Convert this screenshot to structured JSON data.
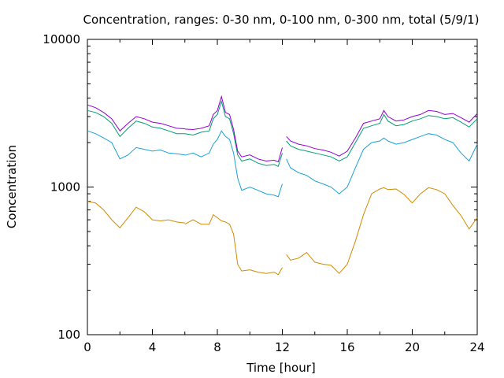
{
  "chart_data": {
    "type": "line",
    "title": "Concentration, ranges: 0-30 nm, 0-100 nm, 0-300 nm, total (5/9/1)",
    "xlabel": "Time [hour]",
    "ylabel": "Concentration",
    "xlim": [
      0,
      24
    ],
    "ylim": [
      100,
      10000
    ],
    "yscale": "log",
    "grid": false,
    "legend": "none",
    "x_ticks": [
      "0",
      "4",
      "8",
      "12",
      "16",
      "20",
      "24"
    ],
    "y_ticks": [
      "100",
      "1000",
      "10000"
    ],
    "x": [
      0,
      0.5,
      1,
      1.5,
      2,
      2.5,
      3,
      3.5,
      4,
      4.5,
      5,
      5.5,
      6,
      null,
      6,
      6.5,
      7,
      7.5,
      7.75,
      8,
      8.25,
      8.5,
      8.75,
      9,
      9.25,
      9.5,
      10,
      10.5,
      11,
      11.5,
      11.75,
      12,
      null,
      12.25,
      12.5,
      13,
      13.5,
      14,
      14.5,
      15,
      15.5,
      16,
      16.5,
      17,
      17.5,
      18,
      18.25,
      18.5,
      19,
      19.5,
      20,
      20.5,
      21,
      21.5,
      22,
      22.5,
      23,
      23.5,
      24
    ],
    "series": [
      {
        "color": "#d08a00",
        "values": [
          800,
          780,
          700,
          600,
          530,
          620,
          730,
          680,
          600,
          590,
          600,
          580,
          570,
          null,
          560,
          600,
          560,
          560,
          650,
          620,
          590,
          580,
          560,
          480,
          300,
          270,
          275,
          265,
          260,
          265,
          255,
          285,
          null,
          350,
          320,
          330,
          360,
          310,
          300,
          295,
          260,
          300,
          430,
          650,
          900,
          970,
          990,
          960,
          970,
          890,
          780,
          900,
          990,
          960,
          900,
          750,
          640,
          520,
          620
        ]
      },
      {
        "color": "#1aa1d6",
        "values": [
          2400,
          2300,
          2150,
          2000,
          1550,
          1650,
          1850,
          1800,
          1750,
          1780,
          1700,
          1680,
          1650,
          null,
          1640,
          1700,
          1600,
          1700,
          1950,
          2100,
          2400,
          2200,
          2100,
          1700,
          1150,
          950,
          1000,
          950,
          900,
          880,
          860,
          1050,
          null,
          1550,
          1350,
          1250,
          1200,
          1100,
          1050,
          1000,
          900,
          1000,
          1350,
          1800,
          2000,
          2050,
          2150,
          2050,
          1950,
          2000,
          2100,
          2200,
          2300,
          2250,
          2100,
          2000,
          1700,
          1500,
          1950
        ]
      },
      {
        "color": "#009e73",
        "values": [
          3300,
          3200,
          3000,
          2700,
          2200,
          2500,
          2800,
          2700,
          2550,
          2500,
          2400,
          2300,
          2300,
          null,
          2300,
          2250,
          2350,
          2400,
          2900,
          3100,
          3800,
          3000,
          2900,
          2300,
          1650,
          1500,
          1550,
          1450,
          1400,
          1420,
          1380,
          1700,
          null,
          2050,
          1900,
          1800,
          1750,
          1700,
          1650,
          1600,
          1500,
          1600,
          2000,
          2500,
          2600,
          2700,
          3100,
          2800,
          2600,
          2650,
          2800,
          2900,
          3050,
          3000,
          2900,
          2950,
          2750,
          2550,
          2900
        ]
      },
      {
        "color": "#9400d3",
        "values": [
          3600,
          3450,
          3200,
          2900,
          2400,
          2700,
          3000,
          2900,
          2750,
          2700,
          2600,
          2500,
          2480,
          null,
          2470,
          2450,
          2500,
          2600,
          3100,
          3300,
          4100,
          3200,
          3100,
          2450,
          1750,
          1600,
          1650,
          1550,
          1500,
          1520,
          1480,
          1850,
          null,
          2200,
          2050,
          1950,
          1900,
          1820,
          1780,
          1720,
          1620,
          1750,
          2150,
          2700,
          2800,
          2900,
          3300,
          3000,
          2800,
          2850,
          3000,
          3100,
          3300,
          3250,
          3100,
          3150,
          2950,
          2750,
          3150
        ]
      }
    ]
  }
}
